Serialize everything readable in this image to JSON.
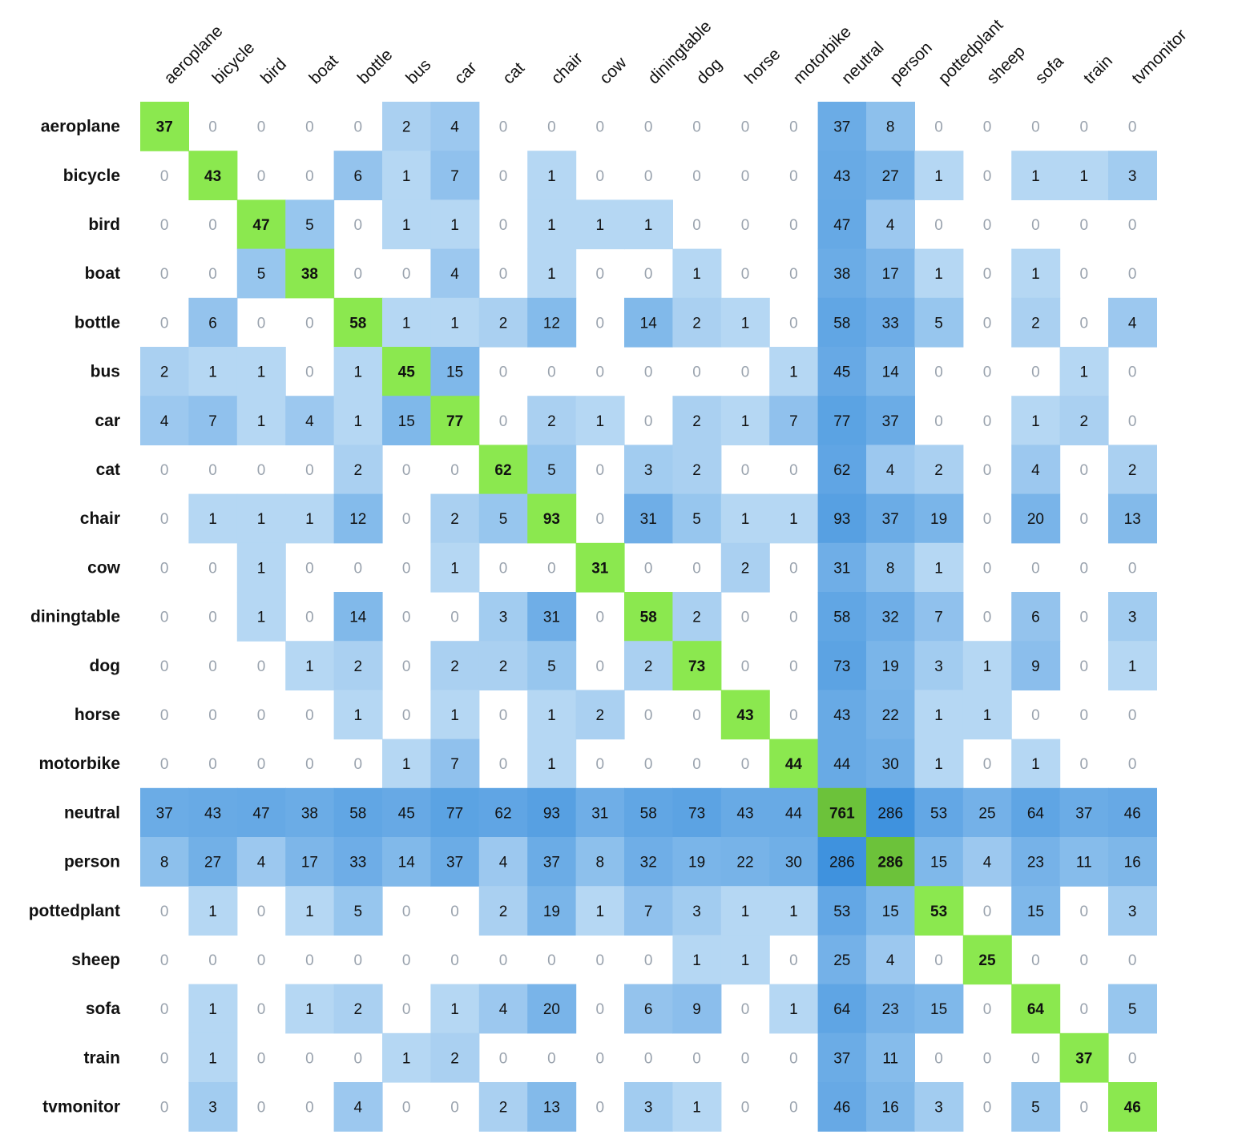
{
  "chart_data": {
    "type": "heatmap",
    "title": "",
    "xlabel": "",
    "ylabel": "",
    "columns": [
      "aeroplane",
      "bicycle",
      "bird",
      "boat",
      "bottle",
      "bus",
      "car",
      "cat",
      "chair",
      "cow",
      "diningtable",
      "dog",
      "horse",
      "motorbike",
      "neutral",
      "person",
      "pottedplant",
      "sheep",
      "sofa",
      "train",
      "tvmonitor"
    ],
    "rows": [
      "aeroplane",
      "bicycle",
      "bird",
      "boat",
      "bottle",
      "bus",
      "car",
      "cat",
      "chair",
      "cow",
      "diningtable",
      "dog",
      "horse",
      "motorbike",
      "neutral",
      "person",
      "pottedplant",
      "sheep",
      "sofa",
      "train",
      "tvmonitor"
    ],
    "values": [
      [
        37,
        0,
        0,
        0,
        0,
        2,
        4,
        0,
        0,
        0,
        0,
        0,
        0,
        0,
        37,
        8,
        0,
        0,
        0,
        0,
        0
      ],
      [
        0,
        43,
        0,
        0,
        6,
        1,
        7,
        0,
        1,
        0,
        0,
        0,
        0,
        0,
        43,
        27,
        1,
        0,
        1,
        1,
        3
      ],
      [
        0,
        0,
        47,
        5,
        0,
        1,
        1,
        0,
        1,
        1,
        1,
        0,
        0,
        0,
        47,
        4,
        0,
        0,
        0,
        0,
        0
      ],
      [
        0,
        0,
        5,
        38,
        0,
        0,
        4,
        0,
        1,
        0,
        0,
        1,
        0,
        0,
        38,
        17,
        1,
        0,
        1,
        0,
        0
      ],
      [
        0,
        6,
        0,
        0,
        58,
        1,
        1,
        2,
        12,
        0,
        14,
        2,
        1,
        0,
        58,
        33,
        5,
        0,
        2,
        0,
        4
      ],
      [
        2,
        1,
        1,
        0,
        1,
        45,
        15,
        0,
        0,
        0,
        0,
        0,
        0,
        1,
        45,
        14,
        0,
        0,
        0,
        1,
        0
      ],
      [
        4,
        7,
        1,
        4,
        1,
        15,
        77,
        0,
        2,
        1,
        0,
        2,
        1,
        7,
        77,
        37,
        0,
        0,
        1,
        2,
        0
      ],
      [
        0,
        0,
        0,
        0,
        2,
        0,
        0,
        62,
        5,
        0,
        3,
        2,
        0,
        0,
        62,
        4,
        2,
        0,
        4,
        0,
        2
      ],
      [
        0,
        1,
        1,
        1,
        12,
        0,
        2,
        5,
        93,
        0,
        31,
        5,
        1,
        1,
        93,
        37,
        19,
        0,
        20,
        0,
        13
      ],
      [
        0,
        0,
        1,
        0,
        0,
        0,
        1,
        0,
        0,
        31,
        0,
        0,
        2,
        0,
        31,
        8,
        1,
        0,
        0,
        0,
        0
      ],
      [
        0,
        0,
        1,
        0,
        14,
        0,
        0,
        3,
        31,
        0,
        58,
        2,
        0,
        0,
        58,
        32,
        7,
        0,
        6,
        0,
        3
      ],
      [
        0,
        0,
        0,
        1,
        2,
        0,
        2,
        2,
        5,
        0,
        2,
        73,
        0,
        0,
        73,
        19,
        3,
        1,
        9,
        0,
        1
      ],
      [
        0,
        0,
        0,
        0,
        1,
        0,
        1,
        0,
        1,
        2,
        0,
        0,
        43,
        0,
        43,
        22,
        1,
        1,
        0,
        0,
        0
      ],
      [
        0,
        0,
        0,
        0,
        0,
        1,
        7,
        0,
        1,
        0,
        0,
        0,
        0,
        44,
        44,
        30,
        1,
        0,
        1,
        0,
        0
      ],
      [
        37,
        43,
        47,
        38,
        58,
        45,
        77,
        62,
        93,
        31,
        58,
        73,
        43,
        44,
        761,
        286,
        53,
        25,
        64,
        37,
        46
      ],
      [
        8,
        27,
        4,
        17,
        33,
        14,
        37,
        4,
        37,
        8,
        32,
        19,
        22,
        30,
        286,
        286,
        15,
        4,
        23,
        11,
        16
      ],
      [
        0,
        1,
        0,
        1,
        5,
        0,
        0,
        2,
        19,
        1,
        7,
        3,
        1,
        1,
        53,
        15,
        53,
        0,
        15,
        0,
        3
      ],
      [
        0,
        0,
        0,
        0,
        0,
        0,
        0,
        0,
        0,
        0,
        0,
        1,
        1,
        0,
        25,
        4,
        0,
        25,
        0,
        0,
        0
      ],
      [
        0,
        1,
        0,
        1,
        2,
        0,
        1,
        4,
        20,
        0,
        6,
        9,
        0,
        1,
        64,
        23,
        15,
        0,
        64,
        0,
        5
      ],
      [
        0,
        1,
        0,
        0,
        0,
        1,
        2,
        0,
        0,
        0,
        0,
        0,
        0,
        0,
        37,
        11,
        0,
        0,
        0,
        37,
        0
      ],
      [
        0,
        3,
        0,
        0,
        4,
        0,
        0,
        2,
        13,
        0,
        3,
        1,
        0,
        0,
        46,
        16,
        3,
        0,
        5,
        0,
        46
      ]
    ],
    "colors": {
      "diagonal": "#8BE84F",
      "diagonal_strong": "#6CC23A",
      "blue_light": "#D9ECFA",
      "blue_dark": "#3F92DE",
      "zero_text": "#9AA3AE",
      "value_text": "#111111",
      "background": "#FFFFFF"
    },
    "legend": "none",
    "grid": false
  }
}
